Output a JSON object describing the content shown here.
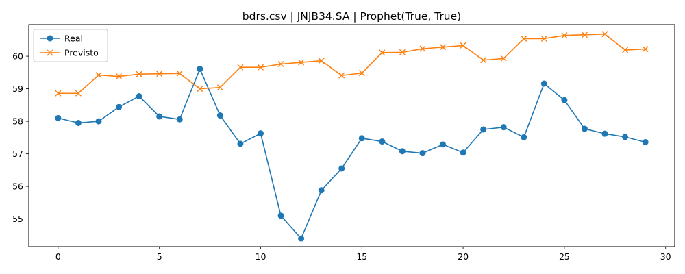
{
  "chart_data": {
    "type": "line",
    "title": "bdrs.csv | JNJB34.SA | Prophet(True, True)",
    "xlabel": "",
    "ylabel": "",
    "xlim": [
      -1.45,
      30.45
    ],
    "ylim": [
      54.15,
      60.97
    ],
    "xticks": [
      0,
      5,
      10,
      15,
      20,
      25,
      30
    ],
    "yticks": [
      55,
      56,
      57,
      58,
      59,
      60
    ],
    "grid": false,
    "legend_position": "top-left",
    "x": [
      0,
      1,
      2,
      3,
      4,
      5,
      6,
      7,
      8,
      9,
      10,
      11,
      12,
      13,
      14,
      15,
      16,
      17,
      18,
      19,
      20,
      21,
      22,
      23,
      24,
      25,
      26,
      27,
      28,
      29
    ],
    "series": [
      {
        "name": "Real",
        "color": "#1f77b4",
        "marker": "circle",
        "values": [
          58.1,
          57.95,
          58.0,
          58.44,
          58.77,
          58.15,
          58.06,
          59.61,
          58.18,
          57.31,
          57.63,
          55.1,
          54.4,
          55.88,
          56.55,
          57.48,
          57.38,
          57.08,
          57.02,
          57.29,
          57.04,
          57.75,
          57.82,
          57.51,
          59.16,
          58.65,
          57.77,
          57.62,
          57.52,
          57.36
        ]
      },
      {
        "name": "Previsto",
        "color": "#ff7f0e",
        "marker": "x",
        "values": [
          58.86,
          58.86,
          59.42,
          59.38,
          59.45,
          59.46,
          59.47,
          59.0,
          59.04,
          59.66,
          59.66,
          59.76,
          59.81,
          59.86,
          59.41,
          59.48,
          60.11,
          60.12,
          60.23,
          60.28,
          60.33,
          59.88,
          59.93,
          60.54,
          60.54,
          60.64,
          60.66,
          60.68,
          60.19,
          60.22
        ]
      }
    ]
  }
}
